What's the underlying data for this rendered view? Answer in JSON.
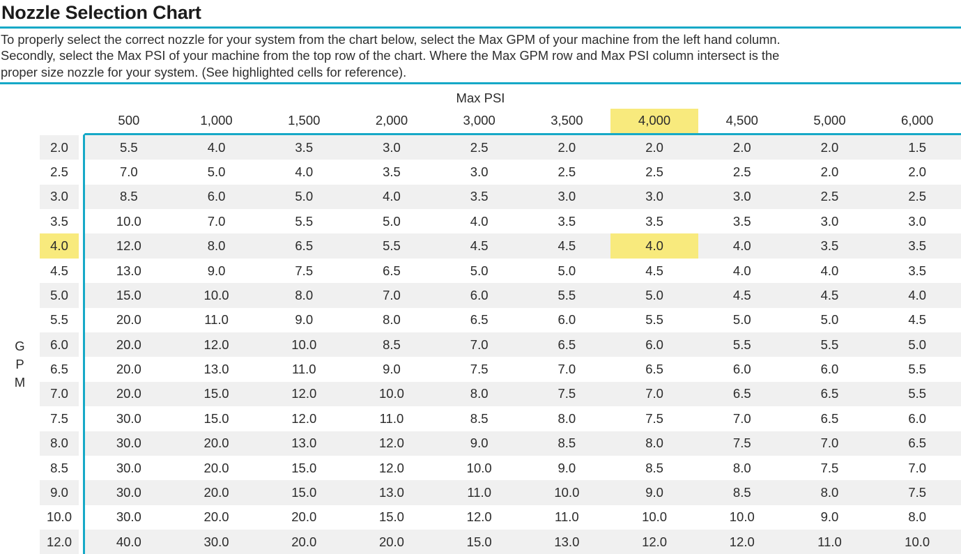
{
  "page": {
    "title": "Nozzle Selection Chart",
    "description_lines": [
      "To properly select the correct nozzle for your system from the chart below, select the Max GPM of your machine from the left hand column.",
      "Secondly, select the Max PSI of your machine from the top row of the chart. Where the Max GPM row and Max PSI column intersect is the",
      "proper size nozzle for your system. (See highlighted cells for reference)."
    ]
  },
  "colors": {
    "accent_teal": "#16a9c7",
    "highlight_yellow": "#f8ea7d",
    "row_alt_gray": "#f0f0f0",
    "title_text": "#1b1b1b",
    "body_text": "#2b2b2b"
  },
  "chart_data": {
    "type": "table",
    "title": "Nozzle Selection Chart",
    "col_axis_label": "Max PSI",
    "row_axis_label": "GPM",
    "columns": [
      "500",
      "1,000",
      "1,500",
      "2,000",
      "3,000",
      "3,500",
      "4,000",
      "4,500",
      "5,000",
      "6,000"
    ],
    "rows": [
      {
        "gpm": "2.0",
        "values": [
          "5.5",
          "4.0",
          "3.5",
          "3.0",
          "2.5",
          "2.0",
          "2.0",
          "2.0",
          "2.0",
          "1.5"
        ]
      },
      {
        "gpm": "2.5",
        "values": [
          "7.0",
          "5.0",
          "4.0",
          "3.5",
          "3.0",
          "2.5",
          "2.5",
          "2.5",
          "2.0",
          "2.0"
        ]
      },
      {
        "gpm": "3.0",
        "values": [
          "8.5",
          "6.0",
          "5.0",
          "4.0",
          "3.5",
          "3.0",
          "3.0",
          "3.0",
          "2.5",
          "2.5"
        ]
      },
      {
        "gpm": "3.5",
        "values": [
          "10.0",
          "7.0",
          "5.5",
          "5.0",
          "4.0",
          "3.5",
          "3.5",
          "3.5",
          "3.0",
          "3.0"
        ]
      },
      {
        "gpm": "4.0",
        "values": [
          "12.0",
          "8.0",
          "6.5",
          "5.5",
          "4.5",
          "4.5",
          "4.0",
          "4.0",
          "3.5",
          "3.5"
        ]
      },
      {
        "gpm": "4.5",
        "values": [
          "13.0",
          "9.0",
          "7.5",
          "6.5",
          "5.0",
          "5.0",
          "4.5",
          "4.0",
          "4.0",
          "3.5"
        ]
      },
      {
        "gpm": "5.0",
        "values": [
          "15.0",
          "10.0",
          "8.0",
          "7.0",
          "6.0",
          "5.5",
          "5.0",
          "4.5",
          "4.5",
          "4.0"
        ]
      },
      {
        "gpm": "5.5",
        "values": [
          "20.0",
          "11.0",
          "9.0",
          "8.0",
          "6.5",
          "6.0",
          "5.5",
          "5.0",
          "5.0",
          "4.5"
        ]
      },
      {
        "gpm": "6.0",
        "values": [
          "20.0",
          "12.0",
          "10.0",
          "8.5",
          "7.0",
          "6.5",
          "6.0",
          "5.5",
          "5.5",
          "5.0"
        ]
      },
      {
        "gpm": "6.5",
        "values": [
          "20.0",
          "13.0",
          "11.0",
          "9.0",
          "7.5",
          "7.0",
          "6.5",
          "6.0",
          "6.0",
          "5.5"
        ]
      },
      {
        "gpm": "7.0",
        "values": [
          "20.0",
          "15.0",
          "12.0",
          "10.0",
          "8.0",
          "7.5",
          "7.0",
          "6.5",
          "6.5",
          "5.5"
        ]
      },
      {
        "gpm": "7.5",
        "values": [
          "30.0",
          "15.0",
          "12.0",
          "11.0",
          "8.5",
          "8.0",
          "7.5",
          "7.0",
          "6.5",
          "6.0"
        ]
      },
      {
        "gpm": "8.0",
        "values": [
          "30.0",
          "20.0",
          "13.0",
          "12.0",
          "9.0",
          "8.5",
          "8.0",
          "7.5",
          "7.0",
          "6.5"
        ]
      },
      {
        "gpm": "8.5",
        "values": [
          "30.0",
          "20.0",
          "15.0",
          "12.0",
          "10.0",
          "9.0",
          "8.5",
          "8.0",
          "7.5",
          "7.0"
        ]
      },
      {
        "gpm": "9.0",
        "values": [
          "30.0",
          "20.0",
          "15.0",
          "13.0",
          "11.0",
          "10.0",
          "9.0",
          "8.5",
          "8.0",
          "7.5"
        ]
      },
      {
        "gpm": "10.0",
        "values": [
          "30.0",
          "20.0",
          "20.0",
          "15.0",
          "12.0",
          "11.0",
          "10.0",
          "10.0",
          "9.0",
          "8.0"
        ]
      },
      {
        "gpm": "12.0",
        "values": [
          "40.0",
          "30.0",
          "20.0",
          "20.0",
          "15.0",
          "13.0",
          "12.0",
          "12.0",
          "11.0",
          "10.0"
        ]
      }
    ],
    "highlight": {
      "psi": "4,000",
      "gpm": "4.0",
      "intersect_value": "4.0"
    },
    "layout": {
      "grid": "off",
      "row_striping": "on",
      "first_row_striped": true
    }
  }
}
